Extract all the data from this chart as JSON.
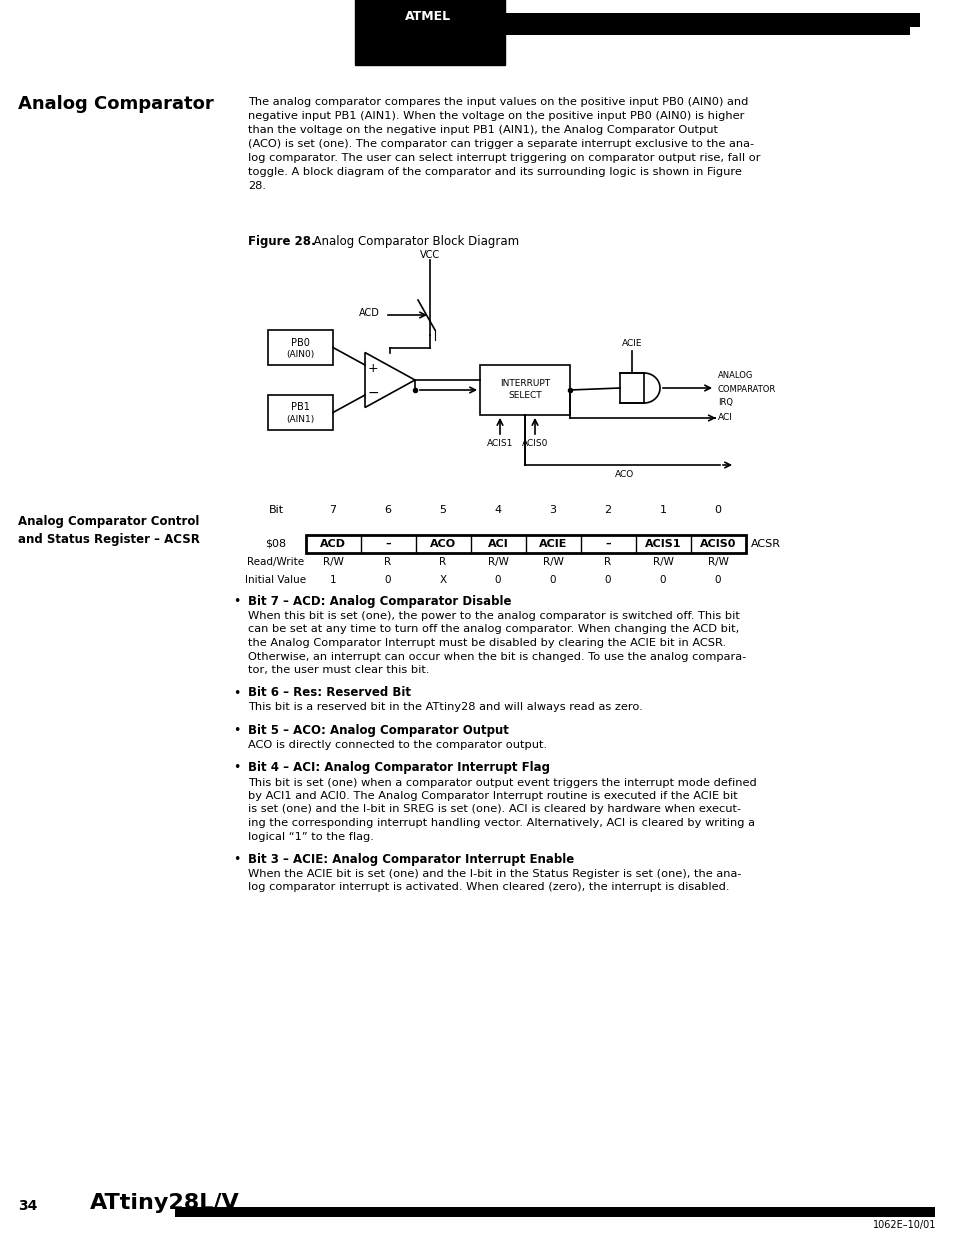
{
  "page_bg": "#ffffff",
  "title_section": "Analog Comparator",
  "body_text": "The analog comparator compares the input values on the positive input PB0 (AIN0) and\nnegative input PB1 (AIN1). When the voltage on the positive input PB0 (AIN0) is higher\nthan the voltage on the negative input PB1 (AIN1), the Analog Comparator Output\n(ACO) is set (one). The comparator can trigger a separate interrupt exclusive to the ana-\nlog comparator. The user can select interrupt triggering on comparator output rise, fall or\ntoggle. A block diagram of the comparator and its surrounding logic is shown in Figure\n28.",
  "figure_caption_bold": "Figure 28.",
  "figure_caption_rest": "  Analog Comparator Block Diagram",
  "register_section_title": "Analog Comparator Control\nand Status Register – ACSR",
  "table_header_row": [
    "Bit",
    "7",
    "6",
    "5",
    "4",
    "3",
    "2",
    "1",
    "0"
  ],
  "table_s08_row": [
    "$08",
    "ACD",
    "–",
    "ACO",
    "ACI",
    "ACIE",
    "–",
    "ACIS1",
    "ACIS0"
  ],
  "table_rw_row": [
    "Read/Write",
    "R/W",
    "R",
    "R",
    "R/W",
    "R/W",
    "R",
    "R/W",
    "R/W"
  ],
  "table_iv_row": [
    "Initial Value",
    "1",
    "0",
    "X",
    "0",
    "0",
    "0",
    "0",
    "0"
  ],
  "table_right_label": "ACSR",
  "bullet_sections": [
    {
      "bullet_bold": "Bit 7 – ACD: Analog Comparator Disable",
      "bullet_text": "When this bit is set (one), the power to the analog comparator is switched off. This bit\ncan be set at any time to turn off the analog comparator. When changing the ACD bit,\nthe Analog Comparator Interrupt must be disabled by clearing the ACIE bit in ACSR.\nOtherwise, an interrupt can occur when the bit is changed. To use the analog compara-\ntor, the user must clear this bit."
    },
    {
      "bullet_bold": "Bit 6 – Res: Reserved Bit",
      "bullet_text": "This bit is a reserved bit in the ATtiny28 and will always read as zero."
    },
    {
      "bullet_bold": "Bit 5 – ACO: Analog Comparator Output",
      "bullet_text": "ACO is directly connected to the comparator output."
    },
    {
      "bullet_bold": "Bit 4 – ACI: Analog Comparator Interrupt Flag",
      "bullet_text": "This bit is set (one) when a comparator output event triggers the interrupt mode defined\nby ACI1 and ACI0. The Analog Comparator Interrupt routine is executed if the ACIE bit\nis set (one) and the I-bit in SREG is set (one). ACI is cleared by hardware when execut-\ning the corresponding interrupt handling vector. Alternatively, ACI is cleared by writing a\nlogical “1” to the flag."
    },
    {
      "bullet_bold": "Bit 3 – ACIE: Analog Comparator Interrupt Enable",
      "bullet_text": "When the ACIE bit is set (one) and the I-bit in the Status Register is set (one), the ana-\nlog comparator interrupt is activated. When cleared (zero), the interrupt is disabled."
    }
  ],
  "footer_page_num": "34",
  "footer_model": "ATtiny28L/V",
  "footer_doc": "1062E–10/01"
}
